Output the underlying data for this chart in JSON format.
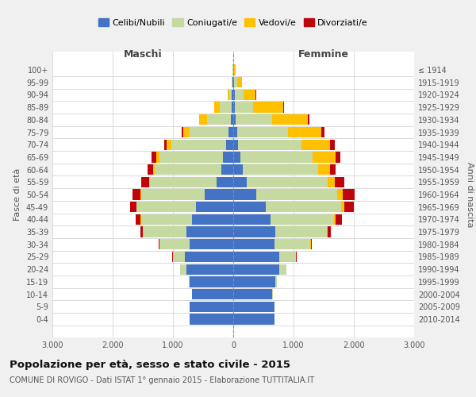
{
  "age_groups": [
    "0-4",
    "5-9",
    "10-14",
    "15-19",
    "20-24",
    "25-29",
    "30-34",
    "35-39",
    "40-44",
    "45-49",
    "50-54",
    "55-59",
    "60-64",
    "65-69",
    "70-74",
    "75-79",
    "80-84",
    "85-89",
    "90-94",
    "95-99",
    "100+"
  ],
  "birth_years": [
    "2010-2014",
    "2005-2009",
    "2000-2004",
    "1995-1999",
    "1990-1994",
    "1985-1989",
    "1980-1984",
    "1975-1979",
    "1970-1974",
    "1965-1969",
    "1960-1964",
    "1955-1959",
    "1950-1954",
    "1945-1949",
    "1940-1944",
    "1935-1939",
    "1930-1934",
    "1925-1929",
    "1920-1924",
    "1915-1919",
    "≤ 1914"
  ],
  "males": {
    "celibi": [
      730,
      720,
      680,
      720,
      780,
      800,
      720,
      780,
      680,
      620,
      480,
      280,
      200,
      170,
      120,
      80,
      40,
      30,
      20,
      10,
      5
    ],
    "coniugati": [
      0,
      0,
      5,
      20,
      100,
      200,
      500,
      720,
      850,
      980,
      1050,
      1100,
      1100,
      1050,
      900,
      650,
      400,
      200,
      50,
      10,
      5
    ],
    "vedovi": [
      0,
      0,
      0,
      0,
      0,
      0,
      0,
      0,
      5,
      5,
      10,
      20,
      30,
      60,
      80,
      100,
      120,
      80,
      20,
      5,
      0
    ],
    "divorziati": [
      0,
      0,
      0,
      0,
      5,
      10,
      20,
      40,
      80,
      110,
      130,
      120,
      90,
      80,
      50,
      30,
      10,
      5,
      0,
      0,
      0
    ]
  },
  "females": {
    "nubili": [
      690,
      680,
      650,
      700,
      760,
      760,
      680,
      700,
      620,
      540,
      380,
      220,
      160,
      120,
      80,
      60,
      40,
      30,
      20,
      10,
      5
    ],
    "coniugate": [
      0,
      0,
      5,
      30,
      120,
      280,
      600,
      850,
      1050,
      1250,
      1350,
      1350,
      1250,
      1200,
      1050,
      850,
      600,
      300,
      150,
      50,
      10
    ],
    "vedove": [
      0,
      0,
      0,
      0,
      0,
      0,
      5,
      15,
      30,
      50,
      80,
      120,
      200,
      380,
      480,
      550,
      600,
      500,
      200,
      80,
      20
    ],
    "divorziate": [
      0,
      0,
      0,
      0,
      5,
      10,
      20,
      50,
      100,
      160,
      200,
      150,
      90,
      80,
      70,
      50,
      20,
      10,
      5,
      0,
      0
    ]
  },
  "colors": {
    "celibi": "#4472c4",
    "coniugati": "#c5d9a0",
    "vedovi": "#ffc000",
    "divorziati": "#c0040c"
  },
  "xlim": 3000,
  "xticks": [
    -3000,
    -2000,
    -1000,
    0,
    1000,
    2000,
    3000
  ],
  "xticklabels": [
    "3.000",
    "2.000",
    "1.000",
    "0",
    "1.000",
    "2.000",
    "3.000"
  ],
  "title": "Popolazione per età, sesso e stato civile - 2015",
  "subtitle": "COMUNE DI ROVIGO - Dati ISTAT 1° gennaio 2015 - Elaborazione TUTTITALIA.IT",
  "ylabel_left": "Fasce di età",
  "ylabel_right": "Anni di nascita",
  "header_maschi": "Maschi",
  "header_femmine": "Femmine",
  "legend_labels": [
    "Celibi/Nubili",
    "Coniugati/e",
    "Vedovi/e",
    "Divorziati/e"
  ],
  "bg_color": "#f0f0f0",
  "plot_bg_color": "#ffffff"
}
